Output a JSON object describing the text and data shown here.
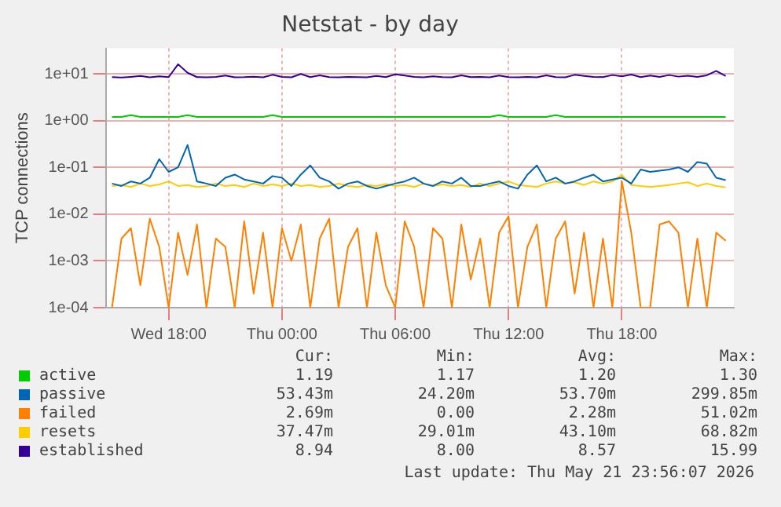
{
  "chart_data": {
    "type": "line",
    "title": "Netstat - by day",
    "ylabel": "TCP connections",
    "log": true,
    "grid": true,
    "legend": "bottom",
    "marker": "none",
    "line_style": "solid",
    "xlim": [
      "2026-05-20T14:40",
      "2026-05-21T23:56"
    ],
    "xticks": [
      {
        "value": "2026-05-20T18:00",
        "label": "Wed 18:00"
      },
      {
        "value": "2026-05-21T00:00",
        "label": "Thu 00:00"
      },
      {
        "value": "2026-05-21T06:00",
        "label": "Thu 06:00"
      },
      {
        "value": "2026-05-21T12:00",
        "label": "Thu 12:00"
      },
      {
        "value": "2026-05-21T18:00",
        "label": "Thu 18:00"
      }
    ],
    "ylim": [
      0.0001,
      35
    ],
    "yticks": [
      {
        "value": 0.0001,
        "label": "1e-04"
      },
      {
        "value": 0.001,
        "label": "1e-03"
      },
      {
        "value": 0.01,
        "label": "1e-02"
      },
      {
        "value": 0.1,
        "label": "1e-01"
      },
      {
        "value": 1,
        "label": "1e+00"
      },
      {
        "value": 10,
        "label": "1e+01"
      }
    ],
    "x": [
      "2026-05-20T15:00",
      "2026-05-20T15:30",
      "2026-05-20T16:00",
      "2026-05-20T16:30",
      "2026-05-20T17:00",
      "2026-05-20T17:30",
      "2026-05-20T18:00",
      "2026-05-20T18:30",
      "2026-05-20T19:00",
      "2026-05-20T19:30",
      "2026-05-20T20:00",
      "2026-05-20T20:30",
      "2026-05-20T21:00",
      "2026-05-20T21:30",
      "2026-05-20T22:00",
      "2026-05-20T22:30",
      "2026-05-20T23:00",
      "2026-05-20T23:30",
      "2026-05-21T00:00",
      "2026-05-21T00:30",
      "2026-05-21T01:00",
      "2026-05-21T01:30",
      "2026-05-21T02:00",
      "2026-05-21T02:30",
      "2026-05-21T03:00",
      "2026-05-21T03:30",
      "2026-05-21T04:00",
      "2026-05-21T04:30",
      "2026-05-21T05:00",
      "2026-05-21T05:30",
      "2026-05-21T06:00",
      "2026-05-21T06:30",
      "2026-05-21T07:00",
      "2026-05-21T07:30",
      "2026-05-21T08:00",
      "2026-05-21T08:30",
      "2026-05-21T09:00",
      "2026-05-21T09:30",
      "2026-05-21T10:00",
      "2026-05-21T10:30",
      "2026-05-21T11:00",
      "2026-05-21T11:30",
      "2026-05-21T12:00",
      "2026-05-21T12:30",
      "2026-05-21T13:00",
      "2026-05-21T13:30",
      "2026-05-21T14:00",
      "2026-05-21T14:30",
      "2026-05-21T15:00",
      "2026-05-21T15:30",
      "2026-05-21T16:00",
      "2026-05-21T16:30",
      "2026-05-21T17:00",
      "2026-05-21T17:30",
      "2026-05-21T18:00",
      "2026-05-21T18:30",
      "2026-05-21T19:00",
      "2026-05-21T19:30",
      "2026-05-21T20:00",
      "2026-05-21T20:30",
      "2026-05-21T21:00",
      "2026-05-21T21:30",
      "2026-05-21T22:00",
      "2026-05-21T22:30",
      "2026-05-21T23:00",
      "2026-05-21T23:30"
    ],
    "series": [
      {
        "name": "active",
        "color": "#00cc00",
        "values": [
          1.2,
          1.2,
          1.3,
          1.2,
          1.2,
          1.2,
          1.2,
          1.2,
          1.3,
          1.2,
          1.2,
          1.2,
          1.2,
          1.2,
          1.2,
          1.2,
          1.2,
          1.3,
          1.2,
          1.2,
          1.2,
          1.2,
          1.2,
          1.2,
          1.2,
          1.2,
          1.2,
          1.2,
          1.2,
          1.2,
          1.2,
          1.2,
          1.2,
          1.2,
          1.2,
          1.2,
          1.2,
          1.2,
          1.2,
          1.2,
          1.2,
          1.3,
          1.2,
          1.2,
          1.2,
          1.2,
          1.2,
          1.3,
          1.2,
          1.2,
          1.2,
          1.2,
          1.2,
          1.2,
          1.2,
          1.2,
          1.2,
          1.2,
          1.2,
          1.2,
          1.2,
          1.2,
          1.2,
          1.2,
          1.2,
          1.19
        ]
      },
      {
        "name": "passive",
        "color": "#0066b3",
        "values": [
          0.045,
          0.04,
          0.05,
          0.045,
          0.06,
          0.15,
          0.08,
          0.1,
          0.3,
          0.05,
          0.045,
          0.04,
          0.06,
          0.07,
          0.055,
          0.05,
          0.045,
          0.065,
          0.06,
          0.04,
          0.07,
          0.11,
          0.06,
          0.05,
          0.035,
          0.045,
          0.05,
          0.04,
          0.035,
          0.04,
          0.045,
          0.05,
          0.06,
          0.045,
          0.04,
          0.05,
          0.045,
          0.06,
          0.04,
          0.04,
          0.045,
          0.05,
          0.04,
          0.035,
          0.07,
          0.11,
          0.05,
          0.06,
          0.045,
          0.05,
          0.06,
          0.07,
          0.05,
          0.055,
          0.06,
          0.045,
          0.09,
          0.08,
          0.085,
          0.09,
          0.1,
          0.08,
          0.13,
          0.12,
          0.06,
          0.05343
        ]
      },
      {
        "name": "failed",
        "color": "#ff8000",
        "values": [
          0.0001,
          0.003,
          0.005,
          0.0003,
          0.008,
          0.002,
          0.0001,
          0.004,
          0.0005,
          0.006,
          0.0001,
          0.003,
          0.002,
          0.0001,
          0.007,
          0.0002,
          0.004,
          0.0001,
          0.005,
          0.001,
          0.006,
          0.0001,
          0.003,
          0.008,
          0.0001,
          0.002,
          0.005,
          0.0001,
          0.004,
          0.0003,
          0.0001,
          0.007,
          0.002,
          0.0001,
          0.005,
          0.003,
          0.0001,
          0.006,
          0.0004,
          0.003,
          0.0001,
          0.004,
          0.009,
          0.0001,
          0.002,
          0.006,
          0.0001,
          0.003,
          0.007,
          0.0002,
          0.004,
          0.0001,
          0.003,
          0.0001,
          0.05102,
          0.004,
          0.0001,
          0.0001,
          0.006,
          0.007,
          0.004,
          0.0001,
          0.003,
          0.0001,
          0.004,
          0.00269
        ]
      },
      {
        "name": "resets",
        "color": "#ffcc00",
        "values": [
          0.04,
          0.042,
          0.038,
          0.045,
          0.04,
          0.043,
          0.05,
          0.04,
          0.042,
          0.038,
          0.04,
          0.045,
          0.04,
          0.042,
          0.038,
          0.045,
          0.04,
          0.043,
          0.04,
          0.045,
          0.04,
          0.042,
          0.038,
          0.04,
          0.045,
          0.04,
          0.038,
          0.042,
          0.04,
          0.044,
          0.04,
          0.042,
          0.038,
          0.045,
          0.04,
          0.043,
          0.04,
          0.042,
          0.038,
          0.045,
          0.04,
          0.045,
          0.05,
          0.042,
          0.04,
          0.038,
          0.045,
          0.05,
          0.045,
          0.048,
          0.042,
          0.05,
          0.045,
          0.05,
          0.06882,
          0.042,
          0.04,
          0.038,
          0.04,
          0.042,
          0.045,
          0.048,
          0.04,
          0.045,
          0.04,
          0.03747
        ]
      },
      {
        "name": "established",
        "color": "#330099",
        "values": [
          8.5,
          8.3,
          8.6,
          9.0,
          8.4,
          8.8,
          8.5,
          15.99,
          10.5,
          8.5,
          8.4,
          8.6,
          9.2,
          8.4,
          8.5,
          8.7,
          8.4,
          9.5,
          8.6,
          8.4,
          9.9,
          8.5,
          9.3,
          8.5,
          8.4,
          8.6,
          8.5,
          8.4,
          9.0,
          8.5,
          9.7,
          9.2,
          8.6,
          8.4,
          8.8,
          8.5,
          8.4,
          9.3,
          8.5,
          8.6,
          8.4,
          9.2,
          8.5,
          8.4,
          8.6,
          8.4,
          9.3,
          8.5,
          8.4,
          9.5,
          9.0,
          8.6,
          8.5,
          9.4,
          8.8,
          9.6,
          8.5,
          9.2,
          8.6,
          9.4,
          8.7,
          9.1,
          8.6,
          9.3,
          11.5,
          8.94
        ]
      }
    ],
    "annotations": [
      "Cur:",
      "Min:",
      "Avg:",
      "Max:",
      "1.19",
      "1.17",
      "1.20",
      "1.30",
      "53.43m",
      "24.20m",
      "53.70m",
      "299.85m",
      "2.69m",
      "0.00",
      "2.28m",
      "51.02m",
      "37.47m",
      "29.01m",
      "43.10m",
      "68.82m",
      "8.94",
      "8.00",
      "8.57",
      "15.99",
      "Last update: Thu May 21 23:56:07 2026"
    ]
  }
}
